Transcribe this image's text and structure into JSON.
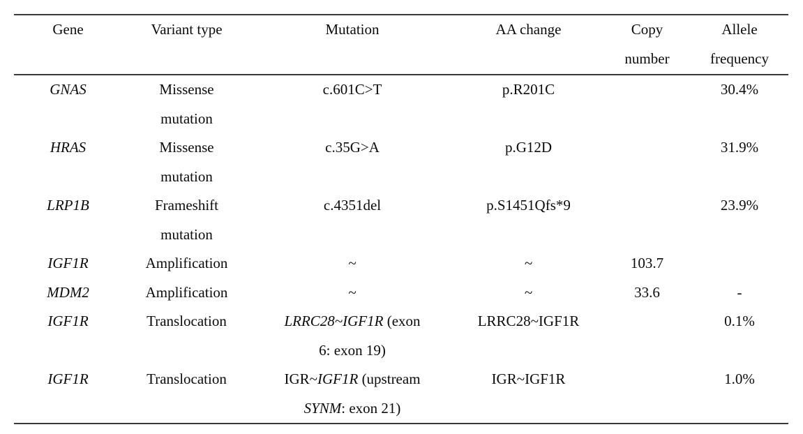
{
  "colors": {
    "background": "#ffffff",
    "text": "#0b0b0b",
    "rule": "#3a3a3a"
  },
  "table": {
    "columns": [
      {
        "id": "gene",
        "label_lines": [
          "Gene"
        ]
      },
      {
        "id": "variant",
        "label_lines": [
          "Variant type"
        ]
      },
      {
        "id": "mutation",
        "label_lines": [
          "Mutation"
        ]
      },
      {
        "id": "aa",
        "label_lines": [
          "AA change"
        ]
      },
      {
        "id": "copy",
        "label_lines": [
          "Copy",
          "number"
        ]
      },
      {
        "id": "allele",
        "label_lines": [
          "Allele",
          "frequency"
        ]
      }
    ],
    "rows": [
      {
        "cells": [
          [
            [
              {
                "t": "GNAS",
                "i": true
              }
            ]
          ],
          [
            [
              {
                "t": "Missense"
              }
            ],
            [
              {
                "t": "mutation"
              }
            ]
          ],
          [
            [
              {
                "t": "c.601C>T"
              }
            ]
          ],
          [
            [
              {
                "t": "p.R201C"
              }
            ]
          ],
          [],
          [
            [
              {
                "t": "30.4%"
              }
            ]
          ]
        ]
      },
      {
        "cells": [
          [
            [
              {
                "t": "HRAS",
                "i": true
              }
            ]
          ],
          [
            [
              {
                "t": "Missense"
              }
            ],
            [
              {
                "t": "mutation"
              }
            ]
          ],
          [
            [
              {
                "t": "c.35G>A"
              }
            ]
          ],
          [
            [
              {
                "t": "p.G12D"
              }
            ]
          ],
          [],
          [
            [
              {
                "t": "31.9%"
              }
            ]
          ]
        ]
      },
      {
        "cells": [
          [
            [
              {
                "t": "LRP1B",
                "i": true
              }
            ]
          ],
          [
            [
              {
                "t": "Frameshift"
              }
            ],
            [
              {
                "t": "mutation"
              }
            ]
          ],
          [
            [
              {
                "t": "c.4351del"
              }
            ]
          ],
          [
            [
              {
                "t": "p.S1451Qfs*9"
              }
            ]
          ],
          [],
          [
            [
              {
                "t": "23.9%"
              }
            ]
          ]
        ]
      },
      {
        "cells": [
          [
            [
              {
                "t": "IGF1R",
                "i": true
              }
            ]
          ],
          [
            [
              {
                "t": "Amplification"
              }
            ]
          ],
          [
            [
              {
                "t": "~"
              }
            ]
          ],
          [
            [
              {
                "t": "~"
              }
            ]
          ],
          [
            [
              {
                "t": "103.7"
              }
            ]
          ],
          []
        ]
      },
      {
        "cells": [
          [
            [
              {
                "t": "MDM2",
                "i": true
              }
            ]
          ],
          [
            [
              {
                "t": "Amplification"
              }
            ]
          ],
          [
            [
              {
                "t": "~"
              }
            ]
          ],
          [
            [
              {
                "t": "~"
              }
            ]
          ],
          [
            [
              {
                "t": "33.6"
              }
            ]
          ],
          [
            [
              {
                "t": "-"
              }
            ]
          ]
        ]
      },
      {
        "cells": [
          [
            [
              {
                "t": "IGF1R",
                "i": true
              }
            ]
          ],
          [
            [
              {
                "t": "Translocation"
              }
            ]
          ],
          [
            [
              {
                "t": "LRRC28~IGF1R",
                "i": true
              },
              {
                "t": " (exon"
              }
            ],
            [
              {
                "t": "6: exon 19)"
              }
            ]
          ],
          [
            [
              {
                "t": "LRRC28~IGF1R"
              }
            ]
          ],
          [],
          [
            [
              {
                "t": "0.1%"
              }
            ]
          ]
        ]
      },
      {
        "cells": [
          [
            [
              {
                "t": "IGF1R",
                "i": true
              }
            ]
          ],
          [
            [
              {
                "t": "Translocation"
              }
            ]
          ],
          [
            [
              {
                "t": "IGR~"
              },
              {
                "t": "IGF1R",
                "i": true
              },
              {
                "t": " (upstream"
              }
            ],
            [
              {
                "t": "SYNM",
                "i": true
              },
              {
                "t": ": exon 21)"
              }
            ]
          ],
          [
            [
              {
                "t": "IGR~IGF1R"
              }
            ]
          ],
          [],
          [
            [
              {
                "t": "1.0%"
              }
            ]
          ]
        ]
      }
    ]
  }
}
